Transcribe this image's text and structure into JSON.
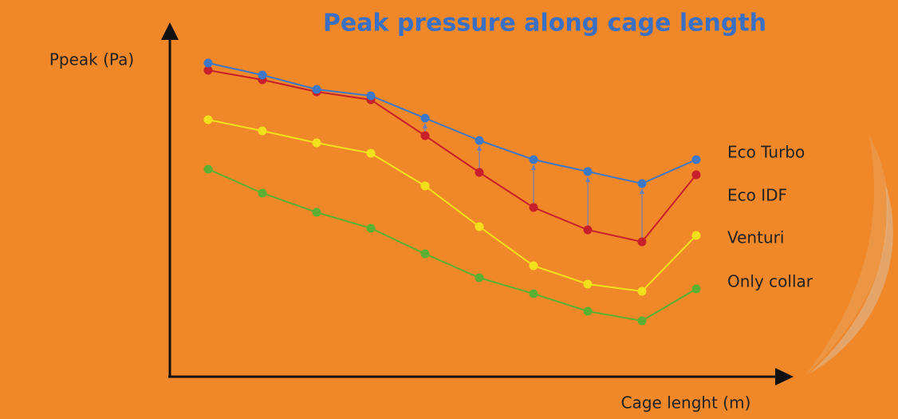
{
  "chart_data": {
    "type": "line",
    "title": "Peak pressure along cage length",
    "y_label": "Ppeak (Pa)",
    "x_label": "Cage lenght (m)",
    "categories": [
      null,
      null,
      null,
      null,
      null,
      null,
      null,
      null,
      null,
      null
    ],
    "ylim": [
      0,
      440
    ],
    "series": [
      {
        "name": "Eco Turbo",
        "color": "#3d78c6",
        "values": [
          393,
          378,
          360,
          352,
          324,
          296,
          272,
          257,
          242,
          272
        ]
      },
      {
        "name": "Eco IDF",
        "color": "#c8202a",
        "values": [
          384,
          372,
          357,
          347,
          302,
          256,
          212,
          184,
          169,
          253
        ]
      },
      {
        "name": "Venturi",
        "color": "#f3e01c",
        "values": [
          322,
          308,
          293,
          280,
          239,
          188,
          139,
          116,
          107,
          177
        ]
      },
      {
        "name": "Only collar",
        "color": "#5bb032",
        "values": [
          260,
          230,
          206,
          186,
          154,
          124,
          104,
          82,
          70,
          110
        ]
      }
    ]
  }
}
